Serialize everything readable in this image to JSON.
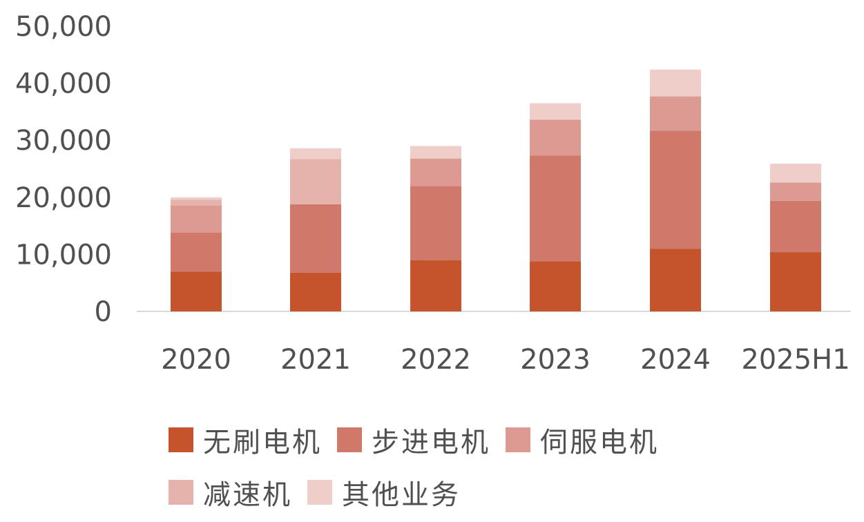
{
  "chart_data": {
    "type": "bar",
    "stacked": true,
    "categories": [
      "2020",
      "2021",
      "2022",
      "2023",
      "2024",
      "2025H1"
    ],
    "series": [
      {
        "name": "无刷电机",
        "color": "#c5532c",
        "values": [
          7000,
          6800,
          9000,
          8800,
          11000,
          10400
        ]
      },
      {
        "name": "步进电机",
        "color": "#d0786a",
        "values": [
          6800,
          12000,
          13000,
          18500,
          20700,
          9000
        ]
      },
      {
        "name": "伺服电机",
        "color": "#dc9a92",
        "values": [
          4800,
          0,
          4800,
          6300,
          6000,
          3200
        ]
      },
      {
        "name": "减速机",
        "color": "#e6b3ac",
        "values": [
          1000,
          7900,
          0,
          0,
          0,
          0
        ]
      },
      {
        "name": "其他业务",
        "color": "#efcdc8",
        "values": [
          400,
          1900,
          2200,
          2900,
          4700,
          3300
        ]
      }
    ],
    "y_ticks": [
      "0",
      "10,000",
      "20,000",
      "30,000",
      "40,000",
      "50,000"
    ],
    "ylim": [
      0,
      50000
    ],
    "title": "",
    "xlabel": "",
    "ylabel": "",
    "legend_position": "bottom"
  }
}
